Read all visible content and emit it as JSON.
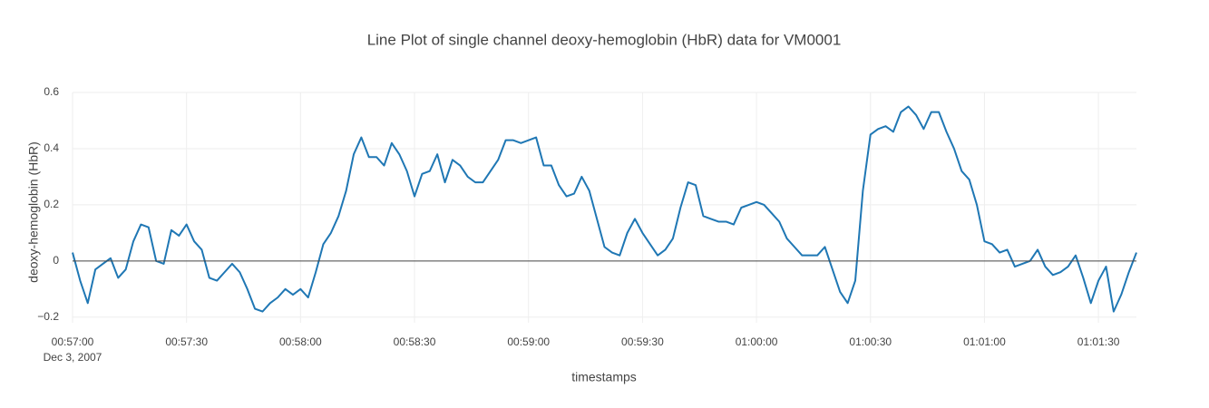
{
  "chart_data": {
    "type": "line",
    "title": "Line Plot of single channel deoxy-hemoglobin (HbR) data for VM0001",
    "x_label": "timestamps",
    "y_label": "deoxy-hemoglobin (HbR)",
    "x_date_label": "Dec 3, 2007",
    "color": "#1f77b4",
    "grid": true,
    "zeroline": true,
    "x": [
      "00:57:00",
      "00:57:02",
      "00:57:04",
      "00:57:06",
      "00:57:08",
      "00:57:10",
      "00:57:12",
      "00:57:14",
      "00:57:16",
      "00:57:18",
      "00:57:20",
      "00:57:22",
      "00:57:24",
      "00:57:26",
      "00:57:28",
      "00:57:30",
      "00:57:32",
      "00:57:34",
      "00:57:36",
      "00:57:38",
      "00:57:40",
      "00:57:42",
      "00:57:44",
      "00:57:46",
      "00:57:48",
      "00:57:50",
      "00:57:52",
      "00:57:54",
      "00:57:56",
      "00:57:58",
      "00:58:00",
      "00:58:02",
      "00:58:04",
      "00:58:06",
      "00:58:08",
      "00:58:10",
      "00:58:12",
      "00:58:14",
      "00:58:16",
      "00:58:18",
      "00:58:20",
      "00:58:22",
      "00:58:24",
      "00:58:26",
      "00:58:28",
      "00:58:30",
      "00:58:32",
      "00:58:34",
      "00:58:36",
      "00:58:38",
      "00:58:40",
      "00:58:42",
      "00:58:44",
      "00:58:46",
      "00:58:48",
      "00:58:50",
      "00:58:52",
      "00:58:54",
      "00:58:56",
      "00:58:58",
      "00:59:00",
      "00:59:02",
      "00:59:04",
      "00:59:06",
      "00:59:08",
      "00:59:10",
      "00:59:12",
      "00:59:14",
      "00:59:16",
      "00:59:18",
      "00:59:20",
      "00:59:22",
      "00:59:24",
      "00:59:26",
      "00:59:28",
      "00:59:30",
      "00:59:32",
      "00:59:34",
      "00:59:36",
      "00:59:38",
      "00:59:40",
      "00:59:42",
      "00:59:44",
      "00:59:46",
      "00:59:48",
      "00:59:50",
      "00:59:52",
      "00:59:54",
      "00:59:56",
      "00:59:58",
      "01:00:00",
      "01:00:02",
      "01:00:04",
      "01:00:06",
      "01:00:08",
      "01:00:10",
      "01:00:12",
      "01:00:14",
      "01:00:16",
      "01:00:18",
      "01:00:20",
      "01:00:22",
      "01:00:24",
      "01:00:26",
      "01:00:28",
      "01:00:30",
      "01:00:32",
      "01:00:34",
      "01:00:36",
      "01:00:38",
      "01:00:40",
      "01:00:42",
      "01:00:44",
      "01:00:46",
      "01:00:48",
      "01:00:50",
      "01:00:52",
      "01:00:54",
      "01:00:56",
      "01:00:58",
      "01:01:00",
      "01:01:02",
      "01:01:04",
      "01:01:06",
      "01:01:08",
      "01:01:10",
      "01:01:12",
      "01:01:14",
      "01:01:16",
      "01:01:18",
      "01:01:20",
      "01:01:22",
      "01:01:24",
      "01:01:26",
      "01:01:28",
      "01:01:30",
      "01:01:32",
      "01:01:34",
      "01:01:36",
      "01:01:38",
      "01:01:40"
    ],
    "values": [
      0.03,
      -0.07,
      -0.15,
      -0.03,
      -0.01,
      0.01,
      -0.06,
      -0.03,
      0.07,
      0.13,
      0.12,
      0.0,
      -0.01,
      0.11,
      0.09,
      0.13,
      0.07,
      0.04,
      -0.06,
      -0.07,
      -0.04,
      -0.01,
      -0.04,
      -0.1,
      -0.17,
      -0.18,
      -0.15,
      -0.13,
      -0.1,
      -0.12,
      -0.1,
      -0.13,
      -0.04,
      0.06,
      0.1,
      0.16,
      0.25,
      0.38,
      0.44,
      0.37,
      0.37,
      0.34,
      0.42,
      0.38,
      0.32,
      0.23,
      0.31,
      0.32,
      0.38,
      0.28,
      0.36,
      0.34,
      0.3,
      0.28,
      0.28,
      0.32,
      0.36,
      0.43,
      0.43,
      0.42,
      0.43,
      0.44,
      0.34,
      0.34,
      0.27,
      0.23,
      0.24,
      0.3,
      0.25,
      0.15,
      0.05,
      0.03,
      0.02,
      0.1,
      0.15,
      0.1,
      0.06,
      0.02,
      0.04,
      0.08,
      0.19,
      0.28,
      0.27,
      0.16,
      0.15,
      0.14,
      0.14,
      0.13,
      0.19,
      0.2,
      0.21,
      0.2,
      0.17,
      0.14,
      0.08,
      0.05,
      0.02,
      0.02,
      0.02,
      0.05,
      -0.03,
      -0.11,
      -0.15,
      -0.07,
      0.25,
      0.45,
      0.47,
      0.48,
      0.46,
      0.53,
      0.55,
      0.52,
      0.47,
      0.53,
      0.53,
      0.46,
      0.4,
      0.32,
      0.29,
      0.2,
      0.07,
      0.06,
      0.03,
      0.04,
      -0.02,
      -0.01,
      0.0,
      0.04,
      -0.02,
      -0.05,
      -0.04,
      -0.02,
      0.02,
      -0.06,
      -0.15,
      -0.07,
      -0.02,
      -0.18,
      -0.12,
      -0.04,
      0.03
    ],
    "xlim": [
      "00:57:00",
      "01:01:40"
    ],
    "xticks": [
      "00:57:00",
      "00:57:30",
      "00:58:00",
      "00:58:30",
      "00:59:00",
      "00:59:30",
      "01:00:00",
      "01:00:30",
      "01:01:00",
      "01:01:30"
    ],
    "ylim": [
      -0.22,
      0.6
    ],
    "yticks": [
      {
        "value": -0.2,
        "label": "−0.2"
      },
      0,
      0.2,
      0.4,
      0.6
    ]
  }
}
